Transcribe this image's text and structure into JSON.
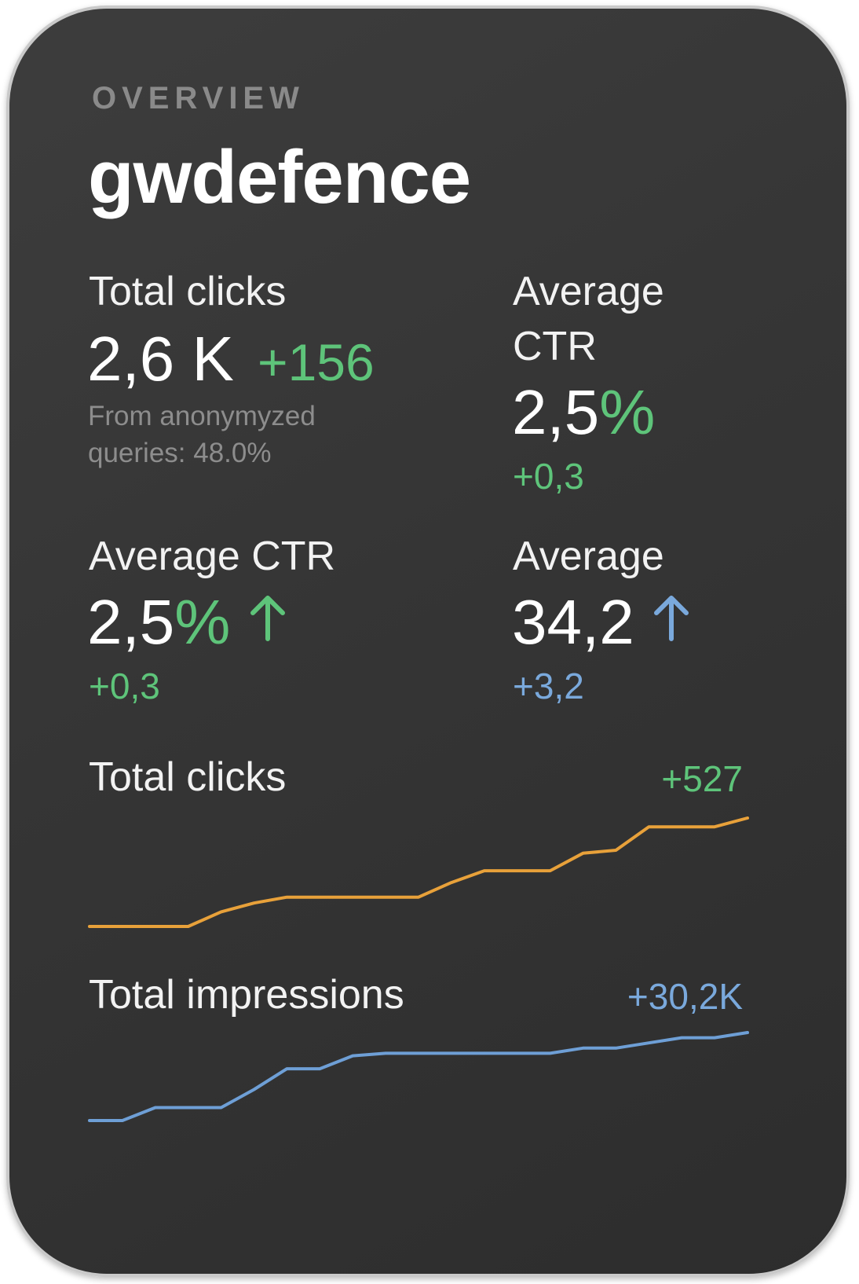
{
  "header": {
    "kicker": "OVERVIEW",
    "title": "gwdefence"
  },
  "metrics": {
    "total_clicks": {
      "label": "Total clicks",
      "value": "2,6 K",
      "change": "+156",
      "note_line1": "From anonymyzed",
      "note_line2": "queries: 48.0%"
    },
    "avg_ctr_top": {
      "label_line1": "Average",
      "label_line2": "CTR",
      "value": "2,5",
      "unit": "%",
      "change": "+0,3"
    },
    "avg_ctr": {
      "label": "Average CTR",
      "value": "2,5",
      "unit": "%",
      "change": "+0,3",
      "trend_icon": "arrow-up-icon"
    },
    "average": {
      "label": "Average",
      "value": "34,2",
      "change": "+3,2",
      "trend_icon": "arrow-up-icon"
    }
  },
  "colors": {
    "background": "#353535",
    "positive": "#5ec47a",
    "info": "#7aa9dc",
    "clicks_line": "#e8a13a",
    "impressions_line": "#6e9fd6"
  },
  "chart_data": [
    {
      "type": "line",
      "title": "Total clicks",
      "change": "+527",
      "x": [
        0,
        1,
        2,
        3,
        4,
        5,
        6,
        7,
        8,
        9,
        10,
        11,
        12,
        13,
        14,
        15,
        16,
        17,
        18,
        19,
        20
      ],
      "series": [
        {
          "values": [
            0,
            0,
            0,
            0,
            0.5,
            0.8,
            1.0,
            1.0,
            1.0,
            1.0,
            1.0,
            1.5,
            1.9,
            1.9,
            1.9,
            2.5,
            2.6,
            3.4,
            3.4,
            3.4,
            3.7
          ]
        }
      ],
      "xlabel": "",
      "ylabel": "",
      "ylim": [
        0,
        3.7
      ]
    },
    {
      "type": "line",
      "title": "Total impressions",
      "change": "+30,2K",
      "x": [
        0,
        1,
        2,
        3,
        4,
        5,
        6,
        7,
        8,
        9,
        10,
        11,
        12,
        13,
        14,
        15,
        16,
        17,
        18,
        19,
        20
      ],
      "series": [
        {
          "values": [
            0,
            0,
            0.5,
            0.5,
            0.5,
            1.2,
            2.0,
            2.0,
            2.5,
            2.6,
            2.6,
            2.6,
            2.6,
            2.6,
            2.6,
            2.8,
            2.8,
            3.0,
            3.2,
            3.2,
            3.4
          ]
        }
      ],
      "xlabel": "",
      "ylabel": "",
      "ylim": [
        0,
        3.4
      ]
    }
  ]
}
